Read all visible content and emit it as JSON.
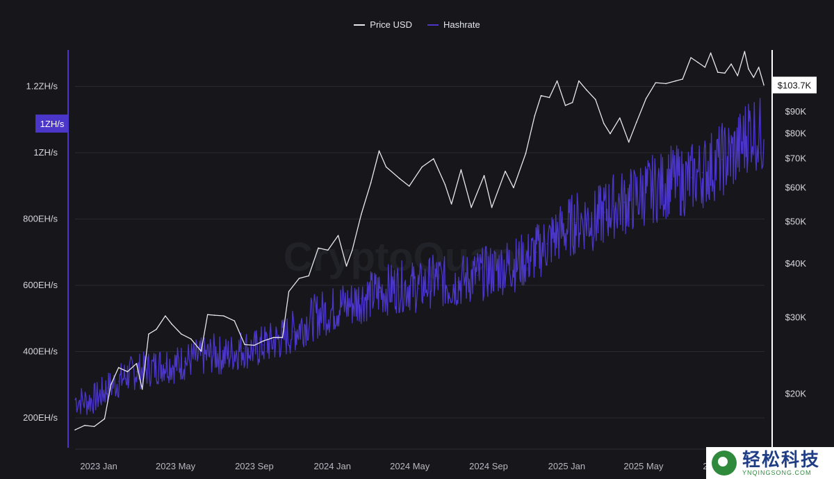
{
  "legend": {
    "price_label": "Price USD",
    "hashrate_label": "Hashrate"
  },
  "watermark": "CryptoQuant",
  "logo": {
    "cn_text": "轻松科技",
    "en_text": "YNQINGSONG.COM"
  },
  "colors": {
    "background": "#16161b",
    "price": "#e8e8ee",
    "hashrate": "#4a36c8",
    "hashrate_axis": "#4a36c8",
    "price_axis": "#ffffff",
    "grid": "#2a2a32"
  },
  "chart_data": {
    "type": "line",
    "title": "",
    "legend_placement": "top-center",
    "grid": true,
    "x_ticks": [
      "2023 Jan",
      "2023 May",
      "2023 Sep",
      "2024 Jan",
      "2024 May",
      "2024 Sep",
      "2025 Jan",
      "2025 May",
      "2025 Sep"
    ],
    "left_axis": {
      "ticks": [
        "200EH/s",
        "400EH/s",
        "600EH/s",
        "800EH/s",
        "1ZH/s",
        "1.2ZH/s"
      ],
      "tick_values": [
        200,
        400,
        600,
        800,
        1000,
        1200
      ],
      "range": [
        110,
        1310
      ],
      "unit": "EH/s",
      "highlight_label": "1ZH/s",
      "highlight_value": 1088
    },
    "right_axis": {
      "scale": "log",
      "ticks": [
        "$20K",
        "$30K",
        "$40K",
        "$50K",
        "$60K",
        "$70K",
        "$80K",
        "$90K"
      ],
      "tick_values": [
        20000,
        30000,
        40000,
        50000,
        60000,
        70000,
        80000,
        90000
      ],
      "range": [
        15000,
        125000
      ],
      "current_label": "$103.7K",
      "current_value": 103700
    },
    "series": [
      {
        "name": "Price USD",
        "axis": "right",
        "x": [
          "2022-11-25",
          "2022-12-10",
          "2022-12-25",
          "2023-01-10",
          "2023-01-20",
          "2023-02-01",
          "2023-02-15",
          "2023-03-01",
          "2023-03-10",
          "2023-03-20",
          "2023-04-01",
          "2023-04-15",
          "2023-04-25",
          "2023-05-10",
          "2023-05-25",
          "2023-06-10",
          "2023-06-20",
          "2023-07-01",
          "2023-07-15",
          "2023-08-01",
          "2023-08-17",
          "2023-09-01",
          "2023-09-15",
          "2023-10-01",
          "2023-10-15",
          "2023-10-25",
          "2023-11-10",
          "2023-11-25",
          "2023-12-10",
          "2023-12-25",
          "2024-01-10",
          "2024-01-23",
          "2024-02-01",
          "2024-02-15",
          "2024-03-01",
          "2024-03-14",
          "2024-03-25",
          "2024-04-15",
          "2024-04-30",
          "2024-05-20",
          "2024-06-07",
          "2024-06-25",
          "2024-07-05",
          "2024-07-20",
          "2024-08-05",
          "2024-08-25",
          "2024-09-06",
          "2024-09-27",
          "2024-10-10",
          "2024-10-29",
          "2024-11-12",
          "2024-11-22",
          "2024-12-05",
          "2024-12-17",
          "2024-12-30",
          "2025-01-10",
          "2025-01-20",
          "2025-02-01",
          "2025-02-15",
          "2025-02-28",
          "2025-03-10",
          "2025-03-25",
          "2025-04-08",
          "2025-04-20",
          "2025-05-05",
          "2025-05-20",
          "2025-06-05",
          "2025-06-20",
          "2025-07-01",
          "2025-07-14",
          "2025-07-25",
          "2025-08-05",
          "2025-08-14",
          "2025-08-25",
          "2025-09-05",
          "2025-09-15",
          "2025-09-25",
          "2025-10-06",
          "2025-10-12",
          "2025-10-20",
          "2025-10-28",
          "2025-11-05"
        ],
        "values": [
          16500,
          16900,
          16800,
          17500,
          21000,
          23000,
          22500,
          23500,
          20500,
          27500,
          28200,
          30300,
          29000,
          27500,
          26800,
          25100,
          30500,
          30400,
          30300,
          29500,
          26000,
          25900,
          26500,
          27000,
          27000,
          34500,
          37000,
          37500,
          43500,
          43000,
          46500,
          39500,
          43000,
          52000,
          61500,
          73000,
          67000,
          63000,
          60500,
          67000,
          70000,
          61000,
          55000,
          66000,
          54000,
          64000,
          54000,
          65500,
          60000,
          72000,
          88000,
          98000,
          97000,
          106000,
          93000,
          94500,
          106000,
          101000,
          96000,
          84500,
          80000,
          87000,
          76500,
          85000,
          96500,
          105000,
          104500,
          106000,
          107000,
          120000,
          117000,
          114000,
          123000,
          111000,
          110500,
          116000,
          109000,
          124000,
          113000,
          108000,
          114000,
          103700
        ]
      },
      {
        "name": "Hashrate",
        "axis": "left",
        "x": [
          "2022-11-25",
          "2022-12-15",
          "2023-01-01",
          "2023-01-15",
          "2023-02-01",
          "2023-02-15",
          "2023-03-01",
          "2023-03-15",
          "2023-04-01",
          "2023-04-15",
          "2023-05-01",
          "2023-05-15",
          "2023-06-01",
          "2023-06-15",
          "2023-07-01",
          "2023-07-15",
          "2023-08-01",
          "2023-08-15",
          "2023-09-01",
          "2023-09-15",
          "2023-10-01",
          "2023-10-15",
          "2023-11-01",
          "2023-11-15",
          "2023-12-01",
          "2023-12-15",
          "2024-01-01",
          "2024-01-15",
          "2024-02-01",
          "2024-02-15",
          "2024-03-01",
          "2024-03-15",
          "2024-04-01",
          "2024-04-15",
          "2024-05-01",
          "2024-05-15",
          "2024-06-01",
          "2024-06-15",
          "2024-07-01",
          "2024-07-15",
          "2024-08-01",
          "2024-08-15",
          "2024-09-01",
          "2024-09-15",
          "2024-10-01",
          "2024-10-15",
          "2024-11-01",
          "2024-11-15",
          "2024-12-01",
          "2024-12-15",
          "2025-01-01",
          "2025-01-15",
          "2025-02-01",
          "2025-02-15",
          "2025-03-01",
          "2025-03-15",
          "2025-04-01",
          "2025-04-15",
          "2025-05-01",
          "2025-05-15",
          "2025-06-01",
          "2025-06-15",
          "2025-07-01",
          "2025-07-15",
          "2025-08-01",
          "2025-08-15",
          "2025-09-01",
          "2025-09-15",
          "2025-10-01",
          "2025-10-15",
          "2025-11-05"
        ],
        "values": [
          255,
          250,
          265,
          290,
          310,
          330,
          340,
          345,
          355,
          365,
          360,
          370,
          380,
          385,
          395,
          385,
          400,
          410,
          405,
          420,
          430,
          440,
          460,
          480,
          500,
          515,
          525,
          540,
          545,
          560,
          570,
          580,
          590,
          595,
          600,
          590,
          610,
          620,
          600,
          610,
          620,
          630,
          640,
          650,
          660,
          665,
          680,
          700,
          725,
          750,
          770,
          790,
          800,
          795,
          820,
          840,
          850,
          860,
          880,
          890,
          900,
          920,
          910,
          925,
          940,
          960,
          980,
          990,
          1020,
          1080,
          1040
        ]
      }
    ]
  }
}
